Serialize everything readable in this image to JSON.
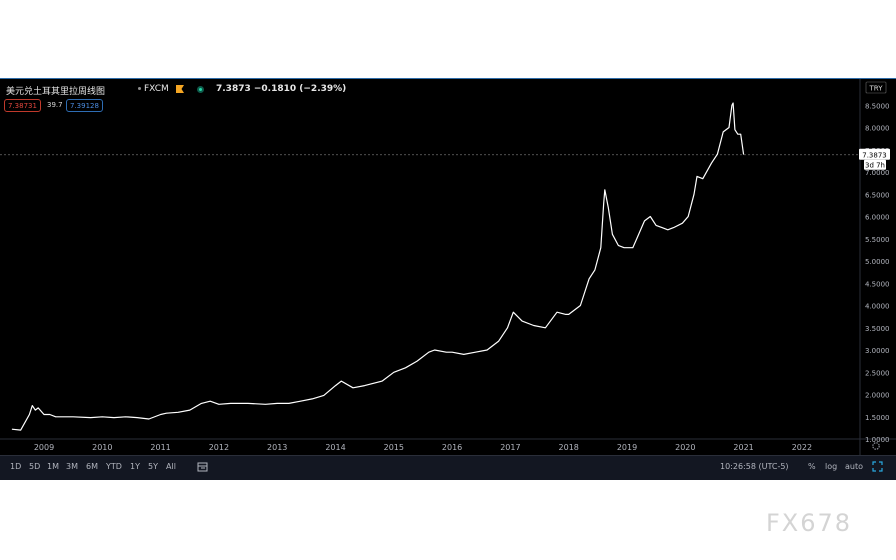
{
  "header": {
    "title": "美元兑土耳其里拉周线图",
    "source": "FXCM",
    "price": "7.3873",
    "change": "−0.1810 (−2.39%)",
    "bid": "7.38731",
    "spread": "39.7",
    "ask": "7.39128"
  },
  "axis": {
    "currency": "TRY",
    "price_tag": "7.3873",
    "countdown": "3d 7h"
  },
  "toolbar": {
    "ranges": [
      "1D",
      "5D",
      "1M",
      "3M",
      "6M",
      "YTD",
      "1Y",
      "5Y",
      "All"
    ],
    "time": "10:26:58 (UTC-5)",
    "percent": "%",
    "log": "log",
    "auto": "auto"
  },
  "watermark": "FX678",
  "colors": {
    "background": "#000000",
    "line": "#ffffff",
    "bid": "#e0463d",
    "ask": "#4a8be0",
    "frame_border": "#2f6ca8"
  },
  "chart_data": {
    "type": "line",
    "title": "美元兑土耳其里拉周线图",
    "xlabel": "",
    "ylabel": "",
    "x_ticks": [
      "2009",
      "2010",
      "2011",
      "2012",
      "2013",
      "2014",
      "2015",
      "2016",
      "2017",
      "2018",
      "2019",
      "2020",
      "2021",
      "2022"
    ],
    "y_ticks": [
      "1.0000",
      "1.5000",
      "2.0000",
      "2.5000",
      "3.0000",
      "3.5000",
      "4.0000",
      "4.5000",
      "5.0000",
      "5.5000",
      "6.0000",
      "6.5000",
      "7.0000",
      "7.5000",
      "8.0000",
      "8.5000"
    ],
    "ylim": [
      1.0,
      8.6
    ],
    "xlim": [
      2008.4,
      2022.4
    ],
    "grid": false,
    "last_value": 7.3873,
    "series": [
      {
        "x": [
          2008.45,
          2008.6,
          2008.75,
          2008.8,
          2008.85,
          2008.9,
          2009.0,
          2009.1,
          2009.2,
          2009.3,
          2009.5,
          2009.8,
          2010.0,
          2010.2,
          2010.4,
          2010.6,
          2010.8,
          2011.0,
          2011.1,
          2011.3,
          2011.5,
          2011.7,
          2011.85,
          2012.0,
          2012.2,
          2012.5,
          2012.8,
          2013.0,
          2013.2,
          2013.4,
          2013.6,
          2013.8,
          2014.0,
          2014.1,
          2014.3,
          2014.5,
          2014.8,
          2015.0,
          2015.2,
          2015.4,
          2015.6,
          2015.7,
          2015.9,
          2016.0,
          2016.2,
          2016.4,
          2016.6,
          2016.8,
          2016.95,
          2017.05,
          2017.2,
          2017.4,
          2017.6,
          2017.8,
          2017.95,
          2018.0,
          2018.2,
          2018.35,
          2018.45,
          2018.55,
          2018.6,
          2018.62,
          2018.68,
          2018.75,
          2018.85,
          2018.95,
          2019.1,
          2019.2,
          2019.3,
          2019.4,
          2019.5,
          2019.6,
          2019.7,
          2019.8,
          2019.95,
          2020.05,
          2020.15,
          2020.2,
          2020.3,
          2020.45,
          2020.55,
          2020.65,
          2020.75,
          2020.8,
          2020.82,
          2020.85,
          2020.9,
          2020.95,
          2021.0
        ],
        "y": [
          1.22,
          1.2,
          1.55,
          1.75,
          1.65,
          1.7,
          1.55,
          1.55,
          1.5,
          1.5,
          1.5,
          1.48,
          1.5,
          1.48,
          1.5,
          1.48,
          1.45,
          1.55,
          1.58,
          1.6,
          1.65,
          1.8,
          1.85,
          1.78,
          1.8,
          1.8,
          1.78,
          1.8,
          1.8,
          1.85,
          1.9,
          1.98,
          2.2,
          2.3,
          2.15,
          2.2,
          2.3,
          2.5,
          2.6,
          2.75,
          2.95,
          3.0,
          2.95,
          2.95,
          2.9,
          2.95,
          3.0,
          3.2,
          3.5,
          3.85,
          3.65,
          3.55,
          3.5,
          3.85,
          3.8,
          3.8,
          4.0,
          4.6,
          4.8,
          5.3,
          6.3,
          6.6,
          6.2,
          5.6,
          5.35,
          5.3,
          5.3,
          5.6,
          5.9,
          6.0,
          5.8,
          5.75,
          5.7,
          5.75,
          5.85,
          6.0,
          6.5,
          6.9,
          6.85,
          7.2,
          7.4,
          7.9,
          8.0,
          8.5,
          8.55,
          7.95,
          7.85,
          7.85,
          7.39
        ]
      }
    ]
  }
}
